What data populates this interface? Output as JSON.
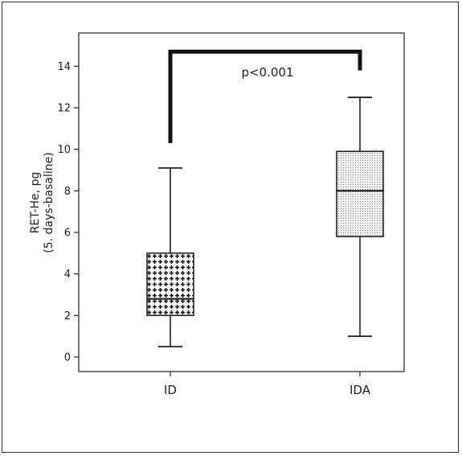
{
  "chart_data": {
    "type": "box",
    "categories": [
      "ID",
      "IDA"
    ],
    "boxes": [
      {
        "category": "ID",
        "min": 0.5,
        "q1": 2.0,
        "median": 2.8,
        "q3": 5.0,
        "max": 9.1,
        "pattern": "crosses"
      },
      {
        "category": "IDA",
        "min": 1.0,
        "q1": 5.8,
        "median": 8.0,
        "q3": 9.9,
        "max": 12.5,
        "pattern": "dots"
      }
    ],
    "ylabel_line1": "RET-He, pg",
    "ylabel_line2": "(5. days-basaline)",
    "yticks": [
      0,
      2,
      4,
      6,
      8,
      10,
      12,
      14
    ],
    "ylim": [
      -0.7,
      15.6
    ],
    "grid": false,
    "significance": {
      "text": "p<0.001",
      "from": "ID",
      "to": "IDA",
      "bracket_top": 14.7,
      "left_end": 10.3,
      "right_end": 13.8
    }
  }
}
